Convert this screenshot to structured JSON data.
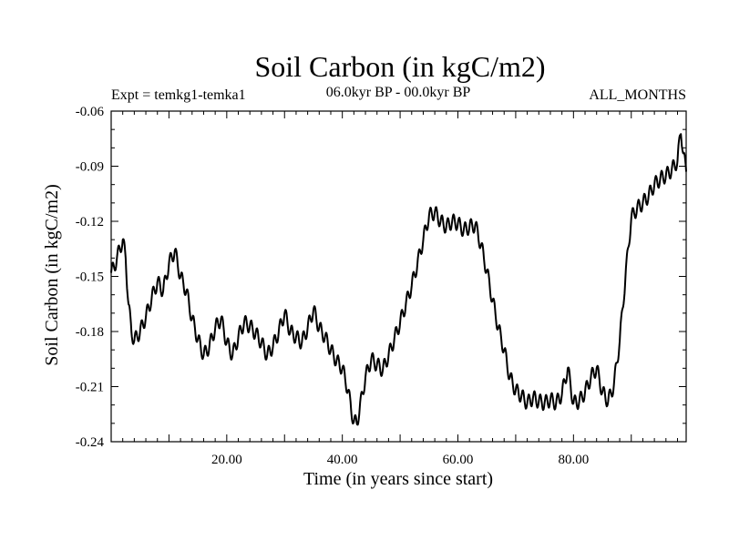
{
  "colors": {
    "background": "#ffffff",
    "line": "#000000",
    "axes": "#000000"
  },
  "chart_data": {
    "type": "line",
    "title": "Soil Carbon (in kgC/m2)",
    "subtitle_left": "Expt = temkg1-temka1",
    "subtitle_center": "06.0kyr BP - 00.0kyr BP",
    "subtitle_right": "ALL_MONTHS",
    "xlabel": "Time (in years since start)",
    "ylabel": "Soil Carbon (in kgC/m2)",
    "xlim": [
      0,
      99.5
    ],
    "ylim": [
      -0.24,
      -0.06
    ],
    "x_ticks": [
      20,
      40,
      60,
      80
    ],
    "x_tick_labels": [
      "20.00",
      "40.00",
      "60.00",
      "80.00"
    ],
    "y_ticks": [
      -0.06,
      -0.09,
      -0.12,
      -0.15,
      -0.18,
      -0.21,
      -0.24
    ],
    "y_tick_labels": [
      "-0.06",
      "-0.09",
      "-0.12",
      "-0.15",
      "-0.18",
      "-0.21",
      "-0.24"
    ],
    "grid": false,
    "series": [
      {
        "name": "Soil Carbon",
        "seasonal_amplitude": 0.004,
        "anchors_x": [
          0,
          0.5,
          1.5,
          2,
          2.5,
          3,
          3.5,
          4,
          5,
          6,
          7,
          8,
          9,
          10,
          11,
          12,
          13,
          14,
          15,
          16,
          17,
          18,
          19,
          20,
          21,
          22,
          23,
          24,
          25,
          26,
          27,
          28,
          29,
          30,
          31,
          32,
          33,
          34,
          35,
          36,
          37,
          38,
          39,
          40,
          41,
          41.5,
          42,
          42.5,
          43,
          44,
          45,
          46,
          47,
          48,
          49,
          50,
          51,
          52,
          53,
          54,
          55,
          56,
          57,
          58,
          59,
          60,
          61,
          62,
          63,
          64,
          65,
          66,
          67,
          68,
          69,
          70,
          71,
          72,
          73,
          74,
          75,
          76,
          77,
          78,
          79,
          80,
          81,
          82,
          83,
          84,
          85,
          86,
          87,
          88,
          89,
          90,
          91,
          92,
          93,
          94,
          95,
          96,
          97,
          98,
          98.6,
          99,
          99.5
        ],
        "anchors_y": [
          -0.148,
          -0.145,
          -0.135,
          -0.13,
          -0.14,
          -0.165,
          -0.18,
          -0.185,
          -0.18,
          -0.172,
          -0.162,
          -0.153,
          -0.158,
          -0.143,
          -0.136,
          -0.15,
          -0.158,
          -0.173,
          -0.184,
          -0.193,
          -0.188,
          -0.178,
          -0.173,
          -0.186,
          -0.193,
          -0.183,
          -0.175,
          -0.177,
          -0.181,
          -0.186,
          -0.193,
          -0.188,
          -0.18,
          -0.17,
          -0.18,
          -0.183,
          -0.186,
          -0.178,
          -0.168,
          -0.178,
          -0.183,
          -0.19,
          -0.196,
          -0.2,
          -0.212,
          -0.222,
          -0.229,
          -0.23,
          -0.222,
          -0.205,
          -0.195,
          -0.198,
          -0.201,
          -0.193,
          -0.184,
          -0.175,
          -0.165,
          -0.155,
          -0.143,
          -0.13,
          -0.117,
          -0.115,
          -0.12,
          -0.123,
          -0.12,
          -0.121,
          -0.125,
          -0.123,
          -0.122,
          -0.133,
          -0.147,
          -0.163,
          -0.178,
          -0.19,
          -0.205,
          -0.212,
          -0.215,
          -0.219,
          -0.216,
          -0.218,
          -0.219,
          -0.217,
          -0.219,
          -0.214,
          -0.2,
          -0.219,
          -0.218,
          -0.213,
          -0.205,
          -0.2,
          -0.213,
          -0.218,
          -0.209,
          -0.185,
          -0.15,
          -0.118,
          -0.113,
          -0.11,
          -0.106,
          -0.1,
          -0.097,
          -0.095,
          -0.092,
          -0.087,
          -0.07,
          -0.083,
          -0.093
        ]
      }
    ]
  }
}
